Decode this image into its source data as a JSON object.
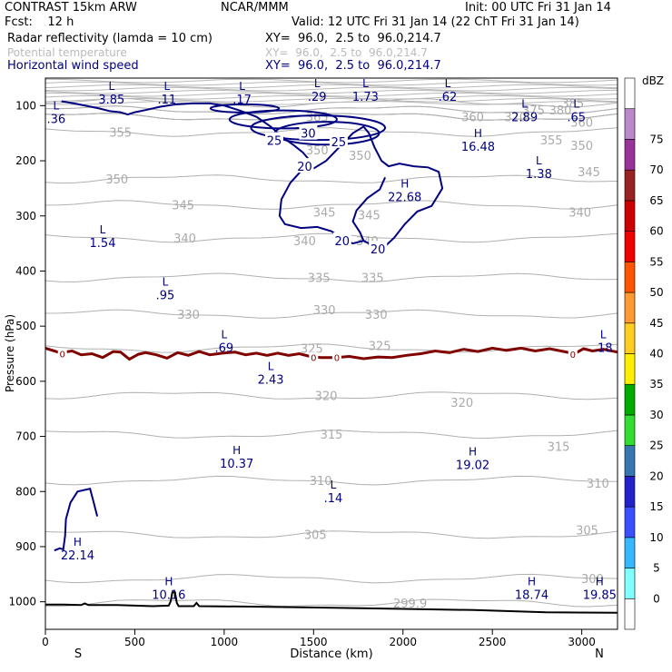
{
  "header": {
    "model": "CONTRAST 15km ARW",
    "org": "NCAR/MMM",
    "init": "Init: 00 UTC Fri 31 Jan 14",
    "fcst": "Fcst:    12 h",
    "valid": "Valid: 12 UTC Fri 31 Jan 14 (22 ChT Fri 31 Jan 14)",
    "fields": [
      {
        "name": "Radar reflectivity (lamda = 10 cm)",
        "xy": "XY=  96.0,  2.5 to  96.0,214.7"
      },
      {
        "name": "Potential temperature",
        "xy": "XY=  96.0,  2.5 to  96.0,214.7"
      },
      {
        "name": "Horizontal wind speed",
        "xy": "XY=  96.0,  2.5 to  96.0,214.7"
      }
    ]
  },
  "chart_data": {
    "type": "cross-section",
    "xlabel": "Distance (km)",
    "ylabel": "Pressure (hPa)",
    "xlim": [
      0,
      3200
    ],
    "ylim": [
      1050,
      50
    ],
    "x_ticks": [
      0,
      500,
      1000,
      1500,
      2000,
      2500,
      3000
    ],
    "y_ticks": [
      100,
      200,
      300,
      400,
      500,
      600,
      700,
      800,
      900,
      1000
    ],
    "endpoint_labels": {
      "left": "S",
      "right": "N"
    },
    "colorbar": {
      "unit": "dBZ",
      "levels": [
        0,
        5,
        10,
        15,
        20,
        25,
        30,
        35,
        40,
        45,
        50,
        55,
        60,
        65,
        70,
        75
      ],
      "colors": [
        "#ffffff",
        "#7fffff",
        "#36b8ff",
        "#3a50ff",
        "#2222c8",
        "#3777b0",
        "#33dd33",
        "#00aa00",
        "#ffee00",
        "#ffcc22",
        "#ff9933",
        "#ff5500",
        "#ee0000",
        "#cc0000",
        "#992222",
        "#993399",
        "#bb88cc",
        "#ffffff"
      ]
    },
    "theta_labels": [
      {
        "value": "385",
        "x": 2950,
        "p": 95
      },
      {
        "value": "380",
        "x": 2880,
        "p": 108
      },
      {
        "value": "375",
        "x": 2730,
        "p": 108
      },
      {
        "value": "370",
        "x": 2630,
        "p": 120
      },
      {
        "value": "365",
        "x": 1520,
        "p": 120
      },
      {
        "value": "360",
        "x": 2390,
        "p": 120
      },
      {
        "value": "360",
        "x": 3000,
        "p": 130
      },
      {
        "value": "355",
        "x": 420,
        "p": 148
      },
      {
        "value": "355",
        "x": 2830,
        "p": 162
      },
      {
        "value": "350",
        "x": 400,
        "p": 233
      },
      {
        "value": "350",
        "x": 1520,
        "p": 180
      },
      {
        "value": "350",
        "x": 1760,
        "p": 190
      },
      {
        "value": "350",
        "x": 3000,
        "p": 172
      },
      {
        "value": "345",
        "x": 770,
        "p": 280
      },
      {
        "value": "345",
        "x": 1560,
        "p": 293
      },
      {
        "value": "345",
        "x": 1810,
        "p": 298
      },
      {
        "value": "345",
        "x": 3040,
        "p": 220
      },
      {
        "value": "340",
        "x": 780,
        "p": 340
      },
      {
        "value": "340",
        "x": 1450,
        "p": 345
      },
      {
        "value": "340",
        "x": 1800,
        "p": 345
      },
      {
        "value": "340",
        "x": 2990,
        "p": 293
      },
      {
        "value": "335",
        "x": 1530,
        "p": 412
      },
      {
        "value": "335",
        "x": 1830,
        "p": 412
      },
      {
        "value": "330",
        "x": 800,
        "p": 478
      },
      {
        "value": "330",
        "x": 1560,
        "p": 470
      },
      {
        "value": "330",
        "x": 1850,
        "p": 478
      },
      {
        "value": "325",
        "x": 1490,
        "p": 540
      },
      {
        "value": "325",
        "x": 1870,
        "p": 535
      },
      {
        "value": "320",
        "x": 1570,
        "p": 626
      },
      {
        "value": "320",
        "x": 2330,
        "p": 638
      },
      {
        "value": "315",
        "x": 1600,
        "p": 696
      },
      {
        "value": "315",
        "x": 2870,
        "p": 718
      },
      {
        "value": "310",
        "x": 1540,
        "p": 780
      },
      {
        "value": "310",
        "x": 3090,
        "p": 785
      },
      {
        "value": "305",
        "x": 1510,
        "p": 878
      },
      {
        "value": "305",
        "x": 3030,
        "p": 870
      },
      {
        "value": "300",
        "x": 3060,
        "p": 958
      },
      {
        "value": "299.9",
        "x": 2040,
        "p": 1002
      }
    ],
    "wind_labels": [
      {
        "value": "25",
        "x": 1280,
        "p": 163
      },
      {
        "value": "30",
        "x": 1470,
        "p": 150
      },
      {
        "value": "25",
        "x": 1640,
        "p": 165
      },
      {
        "value": "20",
        "x": 1450,
        "p": 210
      },
      {
        "value": "20",
        "x": 1660,
        "p": 345
      },
      {
        "value": "20",
        "x": 1860,
        "p": 360
      }
    ],
    "extrema": [
      {
        "type": "L",
        "value": "3.85",
        "x": 370,
        "p": 85
      },
      {
        "type": "L",
        "value": ".11",
        "x": 680,
        "p": 85
      },
      {
        "type": "L",
        "value": ".17",
        "x": 1100,
        "p": 85
      },
      {
        "type": "L",
        "value": ".29",
        "x": 1520,
        "p": 80
      },
      {
        "type": "L",
        "value": "1.73",
        "x": 1790,
        "p": 80
      },
      {
        "type": "L",
        "value": ".62",
        "x": 2250,
        "p": 80
      },
      {
        "type": "L",
        "value": ".36",
        "x": 60,
        "p": 120
      },
      {
        "type": "L",
        "value": "2.89",
        "x": 2680,
        "p": 117
      },
      {
        "type": "L",
        "value": ".65",
        "x": 2970,
        "p": 117
      },
      {
        "type": "H",
        "value": "16.48",
        "x": 2420,
        "p": 170
      },
      {
        "type": "L",
        "value": "1.38",
        "x": 2760,
        "p": 220
      },
      {
        "type": "H",
        "value": "22.68",
        "x": 2010,
        "p": 262
      },
      {
        "type": "L",
        "value": "1.54",
        "x": 320,
        "p": 345
      },
      {
        "type": "L",
        "value": ".95",
        "x": 670,
        "p": 440
      },
      {
        "type": "L",
        "value": ".69",
        "x": 1000,
        "p": 535
      },
      {
        "type": "L",
        "value": ".18",
        "x": 3120,
        "p": 535
      },
      {
        "type": "L",
        "value": "2.43",
        "x": 1260,
        "p": 593
      },
      {
        "type": "H",
        "value": "10.37",
        "x": 1070,
        "p": 745
      },
      {
        "type": "H",
        "value": "19.02",
        "x": 2390,
        "p": 748
      },
      {
        "type": "L",
        "value": ".14",
        "x": 1610,
        "p": 808
      },
      {
        "type": "H",
        "value": "22.14",
        "x": 180,
        "p": 912
      },
      {
        "type": "H",
        "value": "10.16",
        "x": 690,
        "p": 983
      },
      {
        "type": "H",
        "value": "18.74",
        "x": 2720,
        "p": 983
      },
      {
        "type": "H",
        "value": "19.85",
        "x": 3100,
        "p": 983
      }
    ],
    "zero_dbz_labels": [
      {
        "value": "0",
        "x": 95,
        "p": 550
      },
      {
        "value": "0",
        "x": 1500,
        "p": 557
      },
      {
        "value": "0",
        "x": 1630,
        "p": 557
      },
      {
        "value": "0",
        "x": 2950,
        "p": 551
      }
    ],
    "zero_dbz_line": [
      [
        0,
        540
      ],
      [
        80,
        548
      ],
      [
        150,
        545
      ],
      [
        200,
        552
      ],
      [
        260,
        550
      ],
      [
        320,
        557
      ],
      [
        380,
        546
      ],
      [
        420,
        547
      ],
      [
        470,
        560
      ],
      [
        520,
        551
      ],
      [
        560,
        548
      ],
      [
        620,
        552
      ],
      [
        680,
        558
      ],
      [
        740,
        548
      ],
      [
        800,
        553
      ],
      [
        860,
        546
      ],
      [
        920,
        552
      ],
      [
        990,
        549
      ],
      [
        1060,
        547
      ],
      [
        1120,
        552
      ],
      [
        1180,
        549
      ],
      [
        1240,
        553
      ],
      [
        1300,
        549
      ],
      [
        1360,
        553
      ],
      [
        1420,
        550
      ],
      [
        1480,
        555
      ],
      [
        1540,
        557
      ],
      [
        1620,
        557
      ],
      [
        1700,
        555
      ],
      [
        1780,
        559
      ],
      [
        1860,
        556
      ],
      [
        1940,
        557
      ],
      [
        2020,
        553
      ],
      [
        2100,
        550
      ],
      [
        2180,
        545
      ],
      [
        2260,
        548
      ],
      [
        2340,
        542
      ],
      [
        2420,
        546
      ],
      [
        2500,
        540
      ],
      [
        2580,
        544
      ],
      [
        2660,
        540
      ],
      [
        2740,
        545
      ],
      [
        2820,
        541
      ],
      [
        2900,
        546
      ],
      [
        2960,
        550
      ],
      [
        3010,
        541
      ],
      [
        3060,
        545
      ],
      [
        3120,
        542
      ],
      [
        3200,
        547
      ]
    ],
    "wind_20_contour": [
      [
        1900,
        230
      ],
      [
        1870,
        252
      ],
      [
        1800,
        268
      ],
      [
        1740,
        290
      ],
      [
        1720,
        310
      ],
      [
        1760,
        330
      ],
      [
        1780,
        345
      ],
      [
        1720,
        350
      ],
      [
        1680,
        345
      ],
      [
        1600,
        328
      ],
      [
        1520,
        320
      ],
      [
        1430,
        322
      ],
      [
        1340,
        315
      ],
      [
        1310,
        300
      ],
      [
        1320,
        270
      ],
      [
        1370,
        240
      ],
      [
        1440,
        215
      ],
      [
        1480,
        200
      ],
      [
        1440,
        185
      ],
      [
        1390,
        172
      ],
      [
        1330,
        158
      ],
      [
        1260,
        138
      ],
      [
        1180,
        120
      ],
      [
        1080,
        108
      ],
      [
        1000,
        100
      ],
      [
        920,
        96
      ],
      [
        820,
        96
      ],
      [
        720,
        98
      ],
      [
        640,
        102
      ],
      [
        560,
        108
      ],
      [
        500,
        112
      ],
      [
        460,
        116
      ],
      [
        420,
        112
      ],
      [
        360,
        110
      ],
      [
        300,
        105
      ],
      [
        240,
        101
      ],
      [
        160,
        96
      ],
      [
        90,
        92
      ]
    ],
    "wind_20_contour_b": [
      [
        1470,
        220
      ],
      [
        1570,
        200
      ],
      [
        1660,
        170
      ],
      [
        1720,
        150
      ],
      [
        1780,
        138
      ],
      [
        1810,
        150
      ],
      [
        1840,
        175
      ],
      [
        1880,
        200
      ],
      [
        1920,
        210
      ],
      [
        1980,
        205
      ],
      [
        2060,
        210
      ],
      [
        2140,
        212
      ],
      [
        2200,
        220
      ],
      [
        2220,
        250
      ],
      [
        2160,
        282
      ],
      [
        2080,
        292
      ],
      [
        2010,
        315
      ],
      [
        1950,
        340
      ],
      [
        1900,
        355
      ],
      [
        1840,
        355
      ],
      [
        1780,
        345
      ]
    ],
    "surface_line": [
      [
        0,
        1005
      ],
      [
        100,
        1005
      ],
      [
        200,
        1006
      ],
      [
        220,
        1003
      ],
      [
        240,
        1006
      ],
      [
        400,
        1006
      ],
      [
        500,
        1007
      ],
      [
        600,
        1008
      ],
      [
        690,
        1007
      ],
      [
        700,
        1000
      ],
      [
        710,
        983
      ],
      [
        725,
        983
      ],
      [
        735,
        1002
      ],
      [
        745,
        1008
      ],
      [
        830,
        1008
      ],
      [
        845,
        1002
      ],
      [
        860,
        1008
      ],
      [
        1200,
        1009
      ],
      [
        1600,
        1011
      ],
      [
        2000,
        1013
      ],
      [
        2400,
        1015
      ],
      [
        2800,
        1019
      ],
      [
        3200,
        1020
      ]
    ],
    "corner_contour": [
      [
        50,
        907
      ],
      [
        80,
        903
      ],
      [
        100,
        905
      ],
      [
        110,
        880
      ],
      [
        115,
        850
      ],
      [
        140,
        820
      ],
      [
        180,
        800
      ],
      [
        250,
        795
      ],
      [
        270,
        820
      ],
      [
        290,
        845
      ]
    ]
  }
}
